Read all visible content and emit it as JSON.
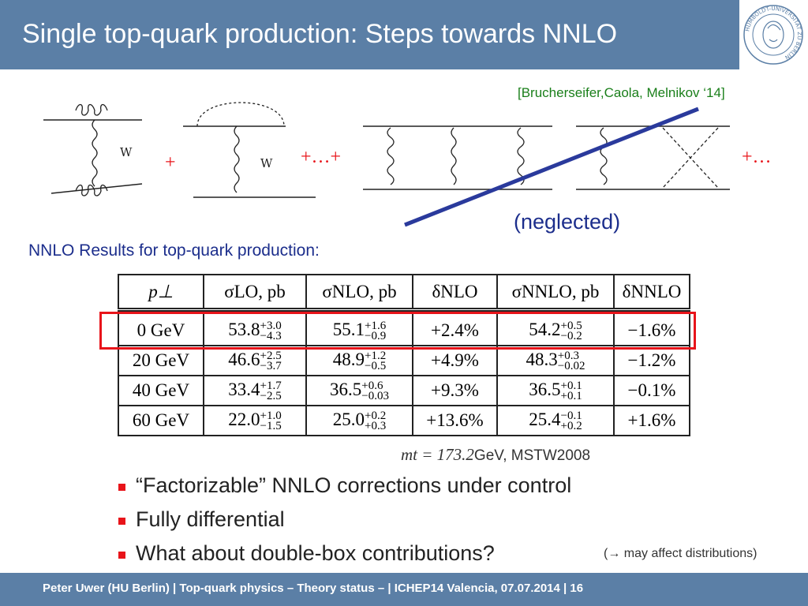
{
  "header": {
    "title": "Single top-quark production: Steps towards NNLO",
    "logo_text": "HUMBOLDT-UNIVERSITÄT ZU BERLIN"
  },
  "citation": "[Brucherseifer,Caola, Melnikov ‘14]",
  "diagrams": {
    "plus1": "+",
    "plus2": "+…+",
    "plus3": "+…",
    "boson_label_1": "W",
    "boson_label_2": "W",
    "neglected": "(neglected)"
  },
  "results_heading": "NNLO Results for top-quark production:",
  "table": {
    "headers": [
      "p⊥",
      "σLO, pb",
      "σNLO, pb",
      "δNLO",
      "σNNLO, pb",
      "δNNLO"
    ],
    "rows": [
      {
        "pt": "0 GeV",
        "lo": "53.8",
        "lo_up": "+3.0",
        "lo_dn": "−4.3",
        "nlo": "55.1",
        "nlo_up": "+1.6",
        "nlo_dn": "−0.9",
        "dnlo": "+2.4%",
        "nnlo": "54.2",
        "nnlo_up": "+0.5",
        "nnlo_dn": "−0.2",
        "dnnlo": "−1.6%"
      },
      {
        "pt": "20 GeV",
        "lo": "46.6",
        "lo_up": "+2.5",
        "lo_dn": "−3.7",
        "nlo": "48.9",
        "nlo_up": "+1.2",
        "nlo_dn": "−0.5",
        "dnlo": "+4.9%",
        "nnlo": "48.3",
        "nnlo_up": "+0.3",
        "nnlo_dn": "−0.02",
        "dnnlo": "−1.2%"
      },
      {
        "pt": "40 GeV",
        "lo": "33.4",
        "lo_up": "+1.7",
        "lo_dn": "−2.5",
        "nlo": "36.5",
        "nlo_up": "+0.6",
        "nlo_dn": "−0.03",
        "dnlo": "+9.3%",
        "nnlo": "36.5",
        "nnlo_up": "+0.1",
        "nnlo_dn": "+0.1",
        "dnnlo": "−0.1%"
      },
      {
        "pt": "60 GeV",
        "lo": "22.0",
        "lo_up": "+1.0",
        "lo_dn": "−1.5",
        "nlo": "25.0",
        "nlo_up": "+0.2",
        "nlo_dn": "+0.3",
        "dnlo": "+13.6%",
        "nnlo": "25.4",
        "nnlo_up": "−0.1",
        "nnlo_dn": "+0.2",
        "dnnlo": "+1.6%"
      }
    ]
  },
  "note": {
    "mt": "mt = 173.2",
    "rest": "GeV, MSTW2008"
  },
  "bullets": [
    "“Factorizable” NNLO corrections under control",
    "Fully differential",
    "What about double-box contributions?"
  ],
  "aside": "(→ may affect  distributions)",
  "footer": "Peter Uwer  (HU Berlin)  |  Top-quark physics – Theory status –  |  ICHEP14 Valencia,  07.07.2014  |   16",
  "colors": {
    "header_bg": "#5b7fa6",
    "accent_red": "#e8141a",
    "navy": "#1c2e8c",
    "citation_green": "#1a7f1a"
  }
}
